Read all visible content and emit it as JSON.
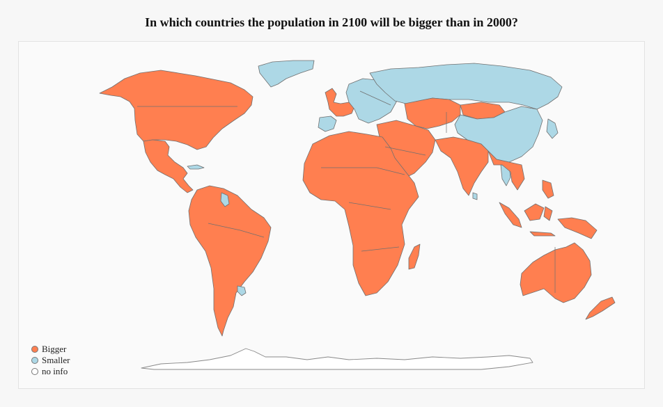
{
  "title": "In which countries the population in 2100 will be bigger than in 2000?",
  "colors": {
    "bigger": "#ff7f50",
    "smaller": "#add8e6",
    "no_info": "#ffffff",
    "border": "#6f6f6f"
  },
  "legend": [
    {
      "key": "bigger",
      "label": "Bigger"
    },
    {
      "key": "smaller",
      "label": "Smaller"
    },
    {
      "key": "no_info",
      "label": "no info"
    }
  ],
  "regions": [
    {
      "name": "North America",
      "category": "bigger"
    },
    {
      "name": "Greenland",
      "category": "smaller"
    },
    {
      "name": "Cuba",
      "category": "smaller"
    },
    {
      "name": "Central America",
      "category": "bigger"
    },
    {
      "name": "South America",
      "category": "bigger"
    },
    {
      "name": "Guyana",
      "category": "smaller"
    },
    {
      "name": "Uruguay",
      "category": "smaller"
    },
    {
      "name": "Western Europe",
      "category": "bigger"
    },
    {
      "name": "Iberia",
      "category": "smaller"
    },
    {
      "name": "Eastern Europe",
      "category": "smaller"
    },
    {
      "name": "Russia",
      "category": "smaller"
    },
    {
      "name": "China",
      "category": "smaller"
    },
    {
      "name": "Japan",
      "category": "smaller"
    },
    {
      "name": "Mongolia",
      "category": "bigger"
    },
    {
      "name": "Africa",
      "category": "bigger"
    },
    {
      "name": "Madagascar",
      "category": "bigger"
    },
    {
      "name": "Middle East",
      "category": "bigger"
    },
    {
      "name": "Central Asia",
      "category": "bigger"
    },
    {
      "name": "South Asia",
      "category": "bigger"
    },
    {
      "name": "Sri Lanka",
      "category": "smaller"
    },
    {
      "name": "Thailand",
      "category": "smaller"
    },
    {
      "name": "Southeast Asia",
      "category": "bigger"
    },
    {
      "name": "Indonesia",
      "category": "bigger"
    },
    {
      "name": "Australia",
      "category": "bigger"
    },
    {
      "name": "New Zealand",
      "category": "bigger"
    },
    {
      "name": "Antarctica",
      "category": "no_info"
    }
  ]
}
